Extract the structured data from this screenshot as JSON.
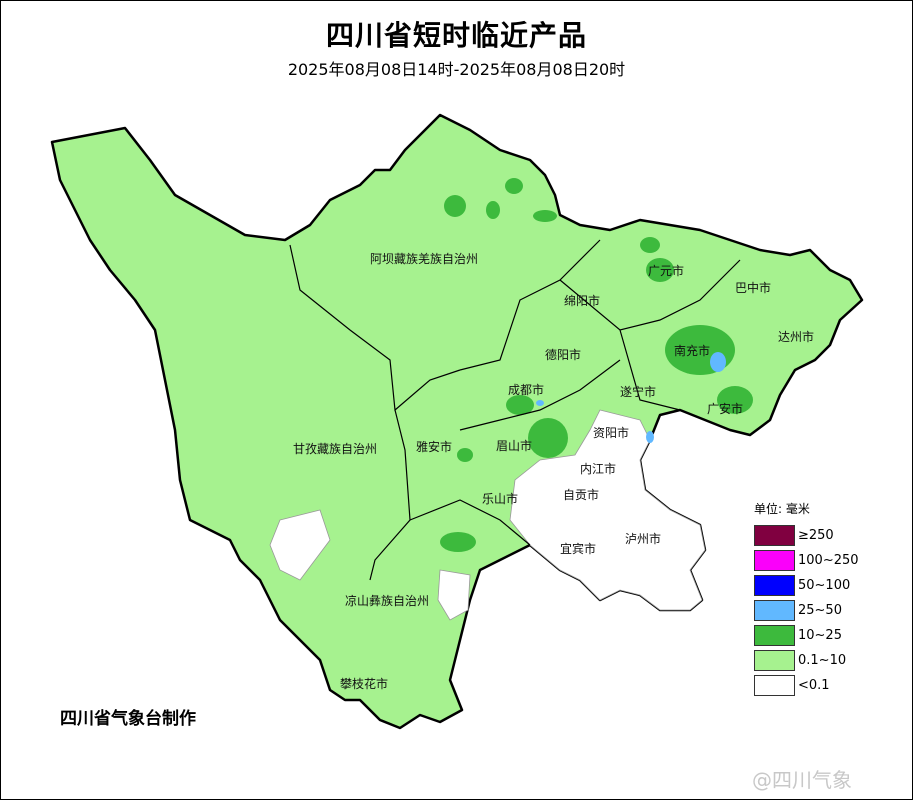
{
  "title": "四川省短时临近产品",
  "subtitle": "2025年08月08日14时-2025年08月08日20时",
  "colors": {
    "no_rain": "#ffffff",
    "light": "#a6f28f",
    "moderate": "#3dba3d",
    "heavy": "#61b8ff",
    "storm": "#0000fe",
    "heavy_storm": "#fa00fa",
    "extreme": "#800040"
  },
  "regions": [
    {
      "name": "阿坝藏族羌族自治州"
    },
    {
      "name": "广元市"
    },
    {
      "name": "巴中市"
    },
    {
      "name": "绵阳市"
    },
    {
      "name": "达州市"
    },
    {
      "name": "南充市"
    },
    {
      "name": "德阳市"
    },
    {
      "name": "成都市"
    },
    {
      "name": "遂宁市"
    },
    {
      "name": "广安市"
    },
    {
      "name": "甘孜藏族自治州"
    },
    {
      "name": "雅安市"
    },
    {
      "name": "眉山市"
    },
    {
      "name": "资阳市"
    },
    {
      "name": "内江市"
    },
    {
      "name": "乐山市"
    },
    {
      "name": "自贡市"
    },
    {
      "name": "宜宾市"
    },
    {
      "name": "泸州市"
    },
    {
      "name": "凉山彝族自治州"
    },
    {
      "name": "攀枝花市"
    }
  ],
  "legend": {
    "unit": "单位: 毫米",
    "items": [
      {
        "label": "≥250",
        "color": "#800040"
      },
      {
        "label": "100~250",
        "color": "#fa00fa"
      },
      {
        "label": "50~100",
        "color": "#0000fe"
      },
      {
        "label": "25~50",
        "color": "#61b8ff"
      },
      {
        "label": "10~25",
        "color": "#3dba3d"
      },
      {
        "label": "0.1~10",
        "color": "#a6f28f"
      },
      {
        "label": "<0.1",
        "color": "#ffffff"
      }
    ]
  },
  "credit": "四川省气象台制作",
  "watermark": "@四川气象"
}
